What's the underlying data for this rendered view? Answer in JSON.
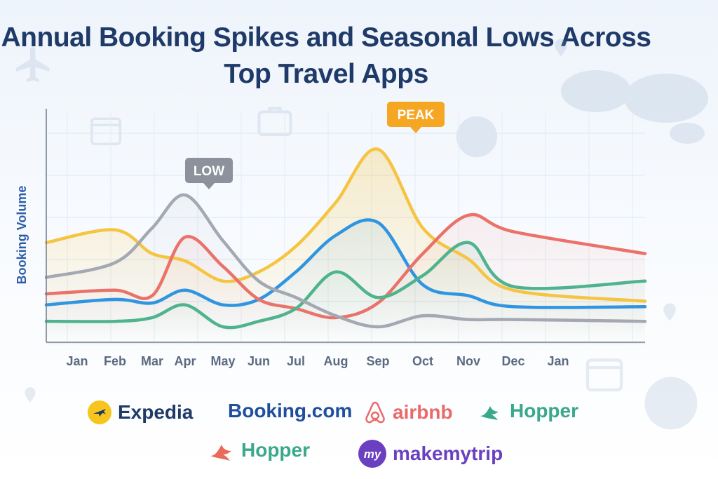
{
  "chart_data": {
    "type": "line",
    "title": "Annual Booking Spikes and Seasonal Lows Across Top Travel Apps",
    "ylabel": "Booking Volume",
    "xlabel": "",
    "categories": [
      "Jan",
      "Feb",
      "Mar",
      "Apr",
      "May",
      "Jun",
      "Jul",
      "Aug",
      "Sep",
      "Oct",
      "Nov",
      "Dec",
      "Jan"
    ],
    "ylim": [
      0,
      100
    ],
    "grid": true,
    "legend": "bottom",
    "series": [
      {
        "name": "Expedia",
        "color": "#f5c542",
        "values": [
          46,
          53,
          40,
          36,
          25,
          30,
          44,
          68,
          97,
          54,
          37,
          20,
          14
        ]
      },
      {
        "name": "Booking.com",
        "color": "#2f95e0",
        "values": [
          12,
          15,
          13,
          20,
          12,
          15,
          30,
          50,
          57,
          23,
          17,
          11,
          11
        ]
      },
      {
        "name": "airbnb",
        "color": "#ea7269",
        "values": [
          18,
          20,
          17,
          49,
          33,
          15,
          10,
          5,
          13,
          40,
          61,
          52,
          40
        ]
      },
      {
        "name": "Hopper",
        "color": "#4fb38e",
        "values": [
          3,
          3,
          5,
          12,
          0,
          3,
          10,
          30,
          16,
          28,
          46,
          22,
          25
        ]
      },
      {
        "name": "makemytrip",
        "color": "#a4a8b2",
        "values": [
          27,
          35,
          54,
          72,
          47,
          25,
          16,
          6,
          0,
          6,
          4,
          4,
          3
        ]
      }
    ],
    "annotations": [
      {
        "text": "LOW",
        "x": "Apr",
        "color": "#8c919b"
      },
      {
        "text": "PEAK",
        "x": "Oct",
        "color": "#f5a623"
      }
    ]
  },
  "legend_logos": [
    {
      "name": "Expedia",
      "color": "#1f3a68"
    },
    {
      "name": "Booking.com",
      "color": "#1f4e9c"
    },
    {
      "name": "airbnb",
      "color": "#ea6a6a"
    },
    {
      "name": "Hopper",
      "color": "#3aa88a"
    },
    {
      "name": "Hopper",
      "color": "#3aa88a"
    },
    {
      "name": "makemytrip",
      "color": "#6a3fc0"
    }
  ]
}
